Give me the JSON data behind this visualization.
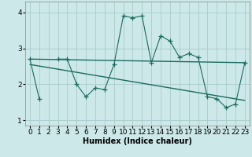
{
  "title": "",
  "xlabel": "Humidex (Indice chaleur)",
  "bg_color": "#cce8e8",
  "line_color": "#1a6b60",
  "grid_color": "#aacccc",
  "x_data": [
    0,
    1,
    2,
    3,
    4,
    5,
    6,
    7,
    8,
    9,
    10,
    11,
    12,
    13,
    14,
    15,
    16,
    17,
    18,
    19,
    20,
    21,
    22,
    23
  ],
  "y_main": [
    2.7,
    1.6,
    null,
    2.7,
    2.7,
    2.0,
    1.65,
    1.9,
    1.85,
    2.55,
    3.9,
    3.85,
    3.9,
    2.6,
    3.35,
    3.2,
    2.75,
    2.85,
    2.75,
    1.65,
    1.6,
    1.35,
    1.45,
    2.6
  ],
  "trend1_x": [
    0,
    23
  ],
  "trend1_y": [
    2.7,
    2.6
  ],
  "trend2_x": [
    0,
    23
  ],
  "trend2_y": [
    2.55,
    1.55
  ],
  "ylim": [
    0.85,
    4.3
  ],
  "xlim": [
    -0.5,
    23.5
  ],
  "yticks": [
    1,
    2,
    3,
    4
  ],
  "xticks": [
    0,
    1,
    2,
    3,
    4,
    5,
    6,
    7,
    8,
    9,
    10,
    11,
    12,
    13,
    14,
    15,
    16,
    17,
    18,
    19,
    20,
    21,
    22,
    23
  ],
  "axis_fontsize": 7,
  "tick_fontsize": 6.5
}
